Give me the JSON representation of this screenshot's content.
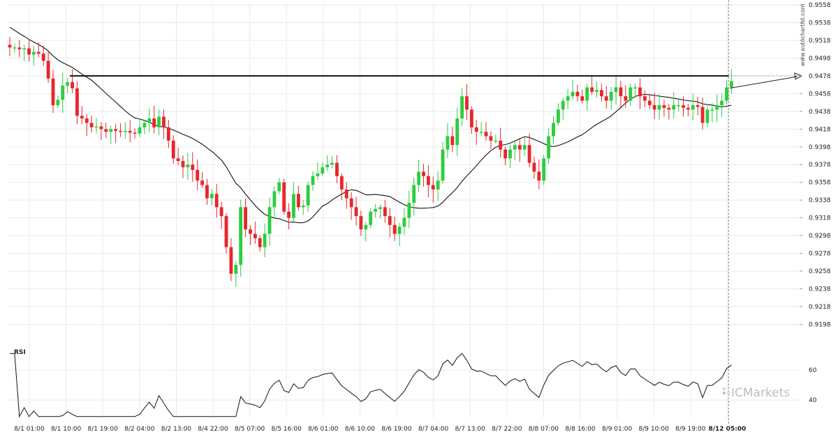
{
  "chart_data": {
    "type": "candlestick",
    "watermark": "www.autochartist.com",
    "brand": "ICMarkets",
    "indicator_label": "RSI",
    "colors": {
      "up": "#2ecc40",
      "down": "#e8262b",
      "ma": "#111111",
      "level": "#111111",
      "projection": "#222222",
      "grid": "#e9e9e9"
    },
    "price_axis": {
      "range": [
        0.9185,
        0.9558
      ],
      "ticks": [
        "0.9558",
        "0.9538",
        "0.9518",
        "0.9498",
        "0.9478",
        "0.9458",
        "0.9438",
        "0.9418",
        "0.9398",
        "0.9378",
        "0.9358",
        "0.9338",
        "0.9318",
        "0.9298",
        "0.9278",
        "0.9258",
        "0.9238",
        "0.9218",
        "0.9198"
      ]
    },
    "rsi_axis": {
      "range": [
        28,
        72
      ],
      "ticks": [
        "60",
        "40"
      ]
    },
    "time_axis": {
      "labels": [
        "8/1 01:00",
        "8/1 10:00",
        "8/1 19:00",
        "8/2 04:00",
        "8/2 13:00",
        "8/4 22:00",
        "8/5 07:00",
        "8/5 16:00",
        "8/6 01:00",
        "8/6 10:00",
        "8/6 19:00",
        "8/7 04:00",
        "8/7 13:00",
        "8/7 22:00",
        "8/8 07:00",
        "8/8 16:00",
        "8/9 01:00",
        "8/9 10:00",
        "8/9 19:00",
        "8/12 05:00"
      ],
      "highlight": "8/12 05:00"
    },
    "resistance_level": 0.9478,
    "projection_target": 0.9478,
    "close": [
      0.951,
      0.951,
      0.9508,
      0.9509,
      0.9502,
      0.9505,
      0.9503,
      0.9495,
      0.9475,
      0.9445,
      0.9451,
      0.9467,
      0.9471,
      0.9464,
      0.9433,
      0.943,
      0.9425,
      0.942,
      0.9421,
      0.9418,
      0.9415,
      0.9418,
      0.9416,
      0.9415,
      0.9416,
      0.9414,
      0.9413,
      0.942,
      0.9425,
      0.943,
      0.942,
      0.9432,
      0.942,
      0.9405,
      0.9385,
      0.9382,
      0.9375,
      0.9378,
      0.9372,
      0.936,
      0.9355,
      0.934,
      0.9345,
      0.933,
      0.932,
      0.9285,
      0.9255,
      0.9265,
      0.933,
      0.9305,
      0.93,
      0.9295,
      0.9285,
      0.93,
      0.933,
      0.9348,
      0.9358,
      0.9325,
      0.9318,
      0.9345,
      0.933,
      0.9332,
      0.9355,
      0.9365,
      0.9368,
      0.9375,
      0.9378,
      0.938,
      0.9365,
      0.935,
      0.934,
      0.933,
      0.932,
      0.9305,
      0.931,
      0.9325,
      0.9328,
      0.933,
      0.932,
      0.931,
      0.93,
      0.9308,
      0.9318,
      0.9335,
      0.9355,
      0.937,
      0.9365,
      0.9355,
      0.935,
      0.936,
      0.9395,
      0.941,
      0.94,
      0.943,
      0.9455,
      0.944,
      0.942,
      0.9415,
      0.9415,
      0.941,
      0.9405,
      0.9405,
      0.9395,
      0.9385,
      0.9395,
      0.94,
      0.9395,
      0.94,
      0.938,
      0.937,
      0.936,
      0.9385,
      0.941,
      0.9425,
      0.944,
      0.945,
      0.9455,
      0.946,
      0.9455,
      0.945,
      0.9465,
      0.946,
      0.9462,
      0.9455,
      0.945,
      0.946,
      0.9465,
      0.9455,
      0.945,
      0.9465,
      0.9465,
      0.9455,
      0.945,
      0.9445,
      0.944,
      0.9445,
      0.9442,
      0.944,
      0.9445,
      0.9445,
      0.9442,
      0.944,
      0.9445,
      0.9443,
      0.9425,
      0.944,
      0.944,
      0.9445,
      0.945,
      0.9465,
      0.9472
    ]
  }
}
